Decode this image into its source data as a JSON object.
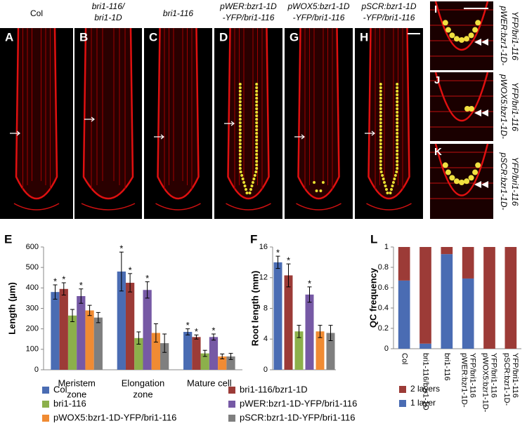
{
  "panels": [
    {
      "letter": "A",
      "label": [
        "Col"
      ]
    },
    {
      "letter": "B",
      "label": [
        "bri1-116/",
        "bri1-1D"
      ]
    },
    {
      "letter": "C",
      "label": [
        "bri1-116"
      ]
    },
    {
      "letter": "D",
      "label": [
        "pWER:bzr1-1D",
        "-YFP/bri1-116"
      ]
    },
    {
      "letter": "G",
      "label": [
        "pWOX5:bzr1-1D",
        "-YFP/bri1-116"
      ]
    },
    {
      "letter": "H",
      "label": [
        "pSCR:bzr1-1D",
        "-YFP/bri1-116"
      ]
    }
  ],
  "insets": [
    {
      "letter": "I",
      "label": [
        "pWER:bzr1-1D-",
        "YFP/bri1-116"
      ]
    },
    {
      "letter": "J",
      "label": [
        "pWOX5:bzr1-1D-",
        "YFP/bri1-116"
      ]
    },
    {
      "letter": "K",
      "label": [
        "pSCR:bzr1-1D-",
        "YFP/bri1-116"
      ]
    }
  ],
  "chart_data": [
    {
      "type": "bar",
      "panel": "E",
      "y_label": "Length (µm)",
      "categories": [
        [
          "Meristem",
          "zone"
        ],
        [
          "Elongation",
          "zone"
        ],
        [
          "Mature cell"
        ]
      ],
      "ylim": [
        0,
        600
      ],
      "yticks": [
        0,
        100,
        200,
        300,
        400,
        500,
        600
      ],
      "series": [
        {
          "name": "Col",
          "color": "#4a6cb3",
          "values": [
            380,
            480,
            185
          ],
          "errors": [
            35,
            95,
            15
          ],
          "stars": [
            "*",
            "*",
            "*"
          ]
        },
        {
          "name": "bri1-116/bzr1-1D",
          "color": "#9c3b37",
          "values": [
            395,
            425,
            160
          ],
          "errors": [
            30,
            45,
            10
          ],
          "stars": [
            "*",
            "*",
            "*"
          ]
        },
        {
          "name": "bri1-116",
          "color": "#8cb04b",
          "values": [
            265,
            155,
            80
          ],
          "errors": [
            30,
            30,
            15
          ],
          "stars": [
            null,
            null,
            null
          ]
        },
        {
          "name": "pWER:bzr1-1D-YFP/bri1-116",
          "color": "#7659a5",
          "values": [
            360,
            390,
            160
          ],
          "errors": [
            35,
            40,
            15
          ],
          "stars": [
            "*",
            "*",
            "*"
          ]
        },
        {
          "name": "pWOX5:bzr1-1D-YFP/bri1-116",
          "color": "#f08b33",
          "values": [
            290,
            180,
            65
          ],
          "errors": [
            25,
            45,
            12
          ],
          "stars": [
            null,
            null,
            null
          ]
        },
        {
          "name": "pSCR:bzr1-1D-YFP/bri1-116",
          "color": "#7f7f7f",
          "values": [
            255,
            130,
            65
          ],
          "errors": [
            25,
            45,
            15
          ],
          "stars": [
            null,
            null,
            null
          ]
        }
      ]
    },
    {
      "type": "bar",
      "panel": "F",
      "y_label": "Root length (mm)",
      "ylim": [
        0,
        16
      ],
      "yticks": [
        0,
        4,
        8,
        12,
        16
      ],
      "values": [
        14,
        12.3,
        5,
        9.8,
        5,
        4.8
      ],
      "errors": [
        0.8,
        1.5,
        0.8,
        1,
        0.8,
        1
      ],
      "colors": [
        "#4a6cb3",
        "#9c3b37",
        "#8cb04b",
        "#7659a5",
        "#f08b33",
        "#7f7f7f"
      ],
      "stars": [
        "*",
        "*",
        null,
        "*",
        null,
        null
      ]
    },
    {
      "type": "stacked-bar",
      "panel": "L",
      "y_label": "QC frequency",
      "categories": [
        [
          "Col"
        ],
        [
          "bri1-116/bzr1-1D"
        ],
        [
          "bri1-116"
        ],
        [
          "pWER:bzr1-1D-",
          "YFP/bri1-116"
        ],
        [
          "pWOX5:bzr1-1D-",
          "YFP/bri1-116"
        ],
        [
          "pSCR:bzr1-1D-",
          "YFP/bri1-116"
        ]
      ],
      "ylim": [
        0,
        1
      ],
      "yticks": [
        0,
        0.2,
        0.4,
        0.6,
        0.8,
        1
      ],
      "series": [
        {
          "name": "1 layer",
          "color": "#4a6cb3",
          "values": [
            0.67,
            0.05,
            0.93,
            0.69,
            0,
            0
          ]
        },
        {
          "name": "2 layers",
          "color": "#9c3b37",
          "values": [
            0.33,
            0.95,
            0.07,
            0.31,
            1,
            1
          ]
        }
      ]
    }
  ]
}
